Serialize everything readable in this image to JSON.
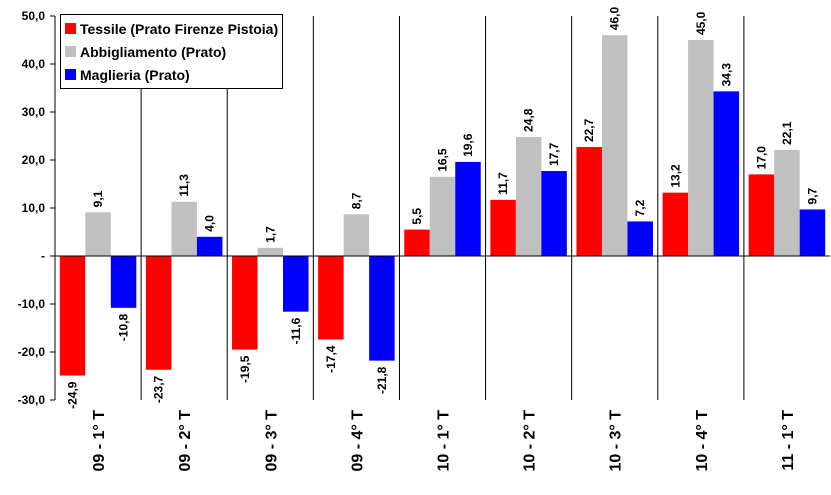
{
  "chart_data": {
    "type": "bar",
    "categories": [
      "09 - 1° T",
      "09 - 2° T",
      "09 - 3° T",
      "09 - 4° T",
      "10 - 1° T",
      "10 - 2° T",
      "10 - 3° T",
      "10 - 4° T",
      "11 - 1° T"
    ],
    "series": [
      {
        "name": "Tessile (Prato Firenze Pistoia)",
        "color": "#ff0000",
        "values": [
          -24.9,
          -23.7,
          -19.5,
          -17.4,
          5.5,
          11.7,
          22.7,
          13.2,
          17.0
        ],
        "labels": [
          "-24,9",
          "-23,7",
          "-19,5",
          "-17,4",
          "5,5",
          "11,7",
          "22,7",
          "13,2",
          "17,0"
        ]
      },
      {
        "name": "Abbigliamento (Prato)",
        "color": "#c0c0c0",
        "values": [
          9.1,
          11.3,
          1.7,
          8.7,
          16.5,
          24.8,
          46.0,
          45.0,
          22.1
        ],
        "labels": [
          "9,1",
          "11,3",
          "1,7",
          "8,7",
          "16,5",
          "24,8",
          "46,0",
          "45,0",
          "22,1"
        ]
      },
      {
        "name": "Maglieria (Prato)",
        "color": "#0000ff",
        "values": [
          -10.8,
          4.0,
          -11.6,
          -21.8,
          19.6,
          17.7,
          7.2,
          34.3,
          9.7
        ],
        "labels": [
          "-10,8",
          "4,0",
          "-11,6",
          "-21,8",
          "19,6",
          "17,7",
          "7,2",
          "34,3",
          "9,7"
        ]
      }
    ],
    "ylim": [
      -30,
      50
    ],
    "yticks": [
      50,
      40,
      30,
      20,
      10,
      0,
      -10,
      -20,
      -30
    ],
    "ytick_labels": [
      "50,0",
      "40,0",
      "30,0",
      "20,0",
      "10,0",
      "-",
      "-10,0",
      "-20,0",
      "-30,0"
    ],
    "legend_position": "top-left",
    "grid": false
  }
}
